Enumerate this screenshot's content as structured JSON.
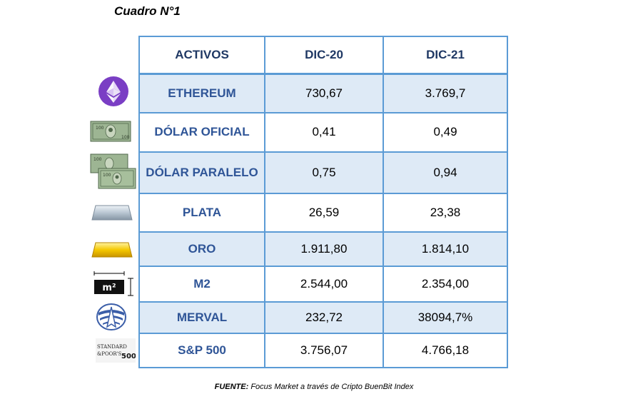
{
  "title": "Cuadro N°1",
  "table": {
    "headers": [
      "ACTIVOS",
      "DIC-20",
      "DIC-21"
    ],
    "rows": [
      {
        "asset": "ETHEREUM",
        "dic20": "730,67",
        "dic21": "3.769,7",
        "icon": "ethereum-icon"
      },
      {
        "asset": "DÓLAR OFICIAL",
        "dic20": "0,41",
        "dic21": "0,49",
        "icon": "dollar-bill-icon"
      },
      {
        "asset": "DÓLAR PARALELO",
        "dic20": "0,75",
        "dic21": "0,94",
        "icon": "dollar-bills-stack-icon"
      },
      {
        "asset": "PLATA",
        "dic20": "26,59",
        "dic21": "23,38",
        "icon": "silver-bar-icon"
      },
      {
        "asset": "ORO",
        "dic20": "1.911,80",
        "dic21": "1.814,10",
        "icon": "gold-bar-icon"
      },
      {
        "asset": "M2",
        "dic20": "2.544,00",
        "dic21": "2.354,00",
        "icon": "square-meter-icon"
      },
      {
        "asset": "MERVAL",
        "dic20": "232,72",
        "dic21": "38094,7%",
        "icon": "merval-logo-icon"
      },
      {
        "asset": "S&P 500",
        "dic20": "3.756,07",
        "dic21": "4.766,18",
        "icon": "sp500-logo-icon"
      }
    ]
  },
  "footer": {
    "lead": "FUENTE:",
    "text": " Focus Market a través de Cripto BuenBit Index"
  },
  "icons": {
    "m2_label": "m²",
    "sp_line1": "STANDARD",
    "sp_line2": "&POOR'S",
    "sp_num": "500"
  },
  "colors": {
    "border": "#5b9bd5",
    "shade": "#deeaf6",
    "header_text": "#1f3864",
    "asset_text": "#2f5597",
    "ethereum": "#7a3ec4",
    "gold": "#f2c200",
    "silver": "#b9c6d2",
    "dollar": "#8fae87"
  }
}
